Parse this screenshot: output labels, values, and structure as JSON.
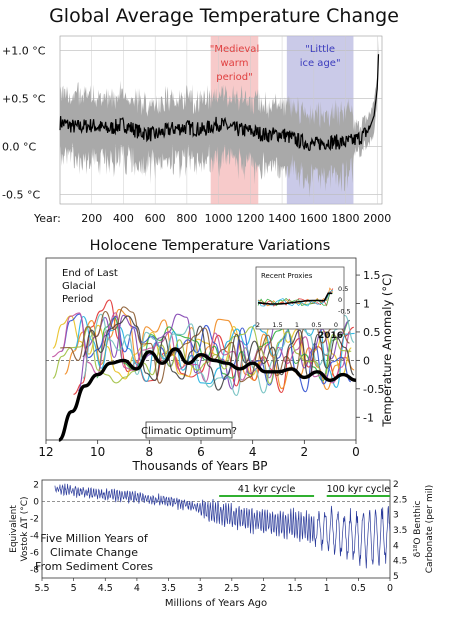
{
  "chart_data": [
    {
      "type": "line",
      "title": "Global Average Temperature Change",
      "xlabel_prefix": "Year:",
      "x_ticks": [
        "200",
        "400",
        "600",
        "800",
        "1000",
        "1200",
        "1400",
        "1600",
        "1800",
        "2000"
      ],
      "y_ticks": [
        "+1.0 °C",
        "+0.5 °C",
        "0.0 °C",
        "-0.5 °C"
      ],
      "xlim": [
        0,
        2030
      ],
      "ylim": [
        -0.6,
        1.15
      ],
      "annotations": [
        {
          "text_lines": [
            "\"Medieval",
            "warm",
            "period\""
          ],
          "x_range": [
            950,
            1250
          ],
          "color": "#f4b8b8",
          "text_color": "#e04040"
        },
        {
          "text_lines": [
            "\"Little",
            "ice age\""
          ],
          "x_range": [
            1430,
            1850
          ],
          "color": "#b8b8e0",
          "text_color": "#3b3bbd"
        }
      ],
      "series": [
        {
          "kind": "uncertainty-band",
          "color": "#a9a9a9"
        },
        {
          "kind": "mean",
          "color": "#000000",
          "x": [
            0,
            100,
            200,
            300,
            400,
            500,
            600,
            700,
            800,
            900,
            1000,
            1100,
            1200,
            1300,
            1400,
            1500,
            1600,
            1700,
            1800,
            1850,
            1900,
            1950,
            1980,
            2000,
            2010
          ],
          "values": [
            0.25,
            0.2,
            0.22,
            0.18,
            0.23,
            0.15,
            0.12,
            0.18,
            0.2,
            0.17,
            0.24,
            0.18,
            0.16,
            0.12,
            0.13,
            0.06,
            0.02,
            0.05,
            0.04,
            0.06,
            0.1,
            0.18,
            0.32,
            0.6,
            1.05
          ]
        }
      ]
    },
    {
      "type": "line",
      "title": "Holocene Temperature Variations",
      "xlabel": "Thousands of Years BP",
      "ylabel": "Temperature Anomaly (°C)",
      "x_ticks": [
        "12",
        "10",
        "8",
        "6",
        "4",
        "2",
        "0"
      ],
      "y_ticks": [
        "1.5",
        "1",
        "0.5",
        "0",
        "-0.5",
        "-1"
      ],
      "xlim": [
        12,
        0
      ],
      "ylim": [
        -1.4,
        1.8
      ],
      "annotations": [
        "End of Last",
        "Glacial",
        "Period",
        "Climatic Optimum?"
      ],
      "inset": {
        "title": "Recent Proxies",
        "x_ticks": [
          "2",
          "1.5",
          "1",
          "0.5",
          "0"
        ],
        "y_ticks": [
          "0.5",
          "0",
          "-0.5"
        ],
        "label": "2016"
      },
      "series": [
        {
          "name": "average",
          "color": "#000000",
          "x": [
            11.5,
            11,
            10.5,
            10,
            9.5,
            9,
            8.5,
            8,
            7.5,
            7,
            6.5,
            6,
            5.5,
            5,
            4.5,
            4,
            3.5,
            3,
            2.5,
            2,
            1.5,
            1,
            0.5,
            0
          ],
          "values": [
            -1.4,
            -0.9,
            -0.45,
            -0.25,
            -0.05,
            0.0,
            -0.15,
            0.15,
            -0.05,
            0.2,
            -0.05,
            0.1,
            0.0,
            -0.05,
            -0.15,
            -0.05,
            -0.2,
            -0.2,
            -0.15,
            -0.3,
            -0.2,
            -0.35,
            -0.25,
            -0.35
          ]
        }
      ]
    },
    {
      "type": "line",
      "title": "Five Million Years of Climate Change From Sediment Cores",
      "title_lines": [
        "Five Million Years of",
        "Climate Change",
        "From Sediment Cores"
      ],
      "xlabel": "Millions of Years Ago",
      "ylabel_left": [
        "Equivalent",
        "Vostok ΔT (°C)"
      ],
      "ylabel_right": [
        "δ¹⁸O Benthic",
        "Carbonate (per mil)"
      ],
      "x_ticks": [
        "5.5",
        "5",
        "4.5",
        "4",
        "3.5",
        "3",
        "2.5",
        "2",
        "1.5",
        "1",
        "0.5",
        "0"
      ],
      "y_ticks_left": [
        "2",
        "0",
        "-2",
        "-4",
        "-6",
        "-8"
      ],
      "y_ticks_right": [
        "2",
        "2.5",
        "3",
        "3.5",
        "4",
        "4.5",
        "5"
      ],
      "xlim": [
        5.5,
        0
      ],
      "ylim": [
        -9,
        2.5
      ],
      "annotations": [
        {
          "text": "41 kyr cycle",
          "x_range": [
            2.7,
            1.2
          ]
        },
        {
          "text": "100 kyr cycle",
          "x_range": [
            1.0,
            0
          ]
        }
      ],
      "series": [
        {
          "name": "benthic-d18O",
          "color": "#2a3a9a",
          "x": [
            5.3,
            5.0,
            4.5,
            4.0,
            3.5,
            3.0,
            2.5,
            2.0,
            1.5,
            1.0,
            0.5,
            0.0
          ],
          "values": [
            1.5,
            1.2,
            0.8,
            0.5,
            0.0,
            -0.8,
            -1.8,
            -2.4,
            -2.8,
            -3.4,
            -4.2,
            -4.0
          ]
        }
      ]
    }
  ]
}
